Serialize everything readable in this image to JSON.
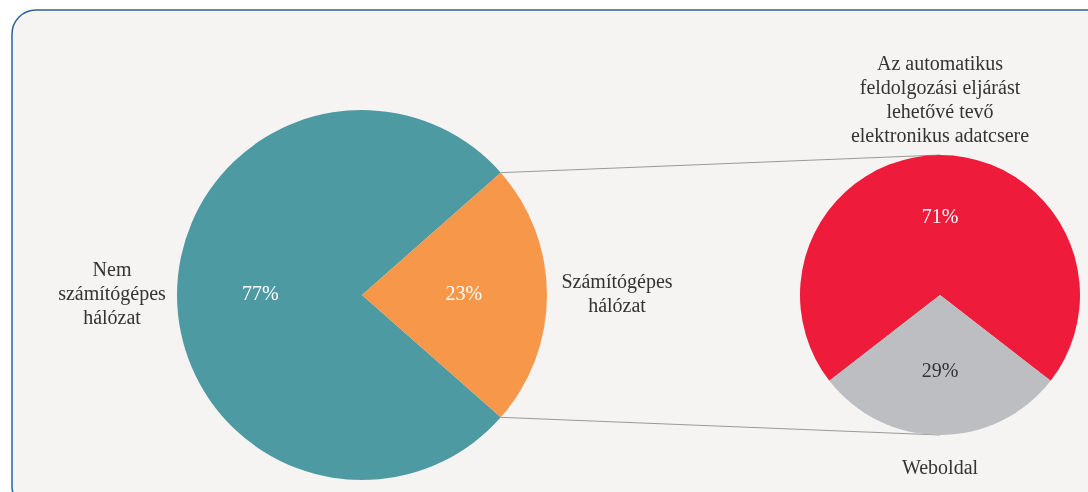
{
  "chart_data": [
    {
      "type": "pie",
      "categories": [
        "Nem számítógépes hálózat",
        "Számítógépes hálózat"
      ],
      "values": [
        77,
        23
      ],
      "colors": [
        "#4e9aa2",
        "#f7974a"
      ],
      "value_labels": [
        "77%",
        "23%"
      ]
    },
    {
      "type": "pie",
      "categories": [
        "Az automatikus feldolgozási eljárást lehetővé tevő elektronikus adatcsere",
        "Weboldal"
      ],
      "values": [
        71,
        29
      ],
      "colors": [
        "#ee1c3a",
        "#bdbec2"
      ],
      "value_labels": [
        "71%",
        "29%"
      ]
    }
  ]
}
